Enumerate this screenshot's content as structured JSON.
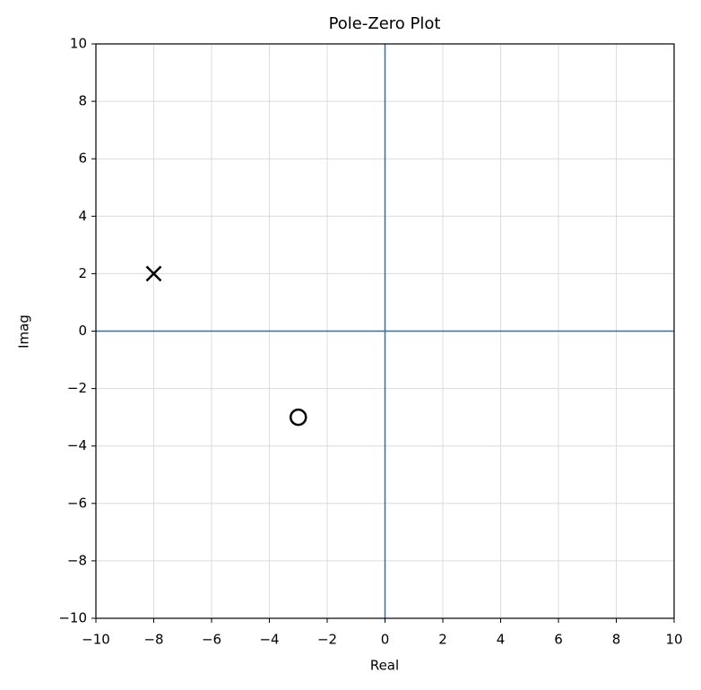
{
  "chart_data": {
    "type": "scatter",
    "title": "Pole-Zero Plot",
    "x_label": "Real",
    "y_label": "Imag",
    "xlim": [
      -10,
      10
    ],
    "ylim": [
      -10,
      10
    ],
    "xticks": [
      {
        "value": -10,
        "label": "−10"
      },
      {
        "value": -8,
        "label": "−8"
      },
      {
        "value": -6,
        "label": "−6"
      },
      {
        "value": -4,
        "label": "−4"
      },
      {
        "value": -2,
        "label": "−2"
      },
      0,
      2,
      4,
      6,
      8,
      10
    ],
    "yticks": [
      {
        "value": -10,
        "label": "−10"
      },
      {
        "value": -8,
        "label": "−8"
      },
      {
        "value": -6,
        "label": "−6"
      },
      {
        "value": -4,
        "label": "−4"
      },
      {
        "value": -2,
        "label": "−2"
      },
      0,
      2,
      4,
      6,
      8,
      10
    ],
    "grid": true,
    "reference_lines": {
      "color": "#1f77b4",
      "x": 0,
      "y": 0
    },
    "series": [
      {
        "marker": "x",
        "color": "#000000",
        "x": [
          -8
        ],
        "values": [
          2
        ]
      },
      {
        "marker": "o",
        "color": "#000000",
        "x": [
          -3
        ],
        "values": [
          -3
        ]
      }
    ]
  }
}
